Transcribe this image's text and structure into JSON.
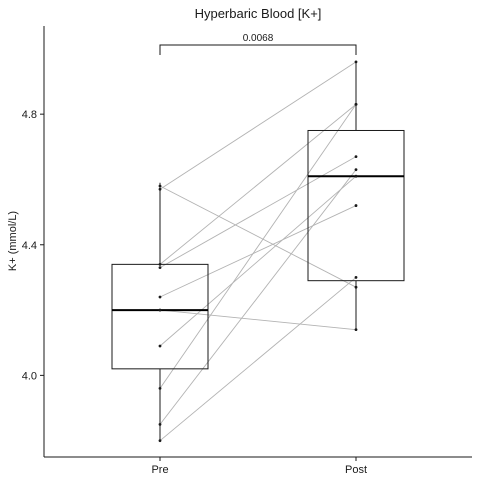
{
  "chart_data": {
    "type": "box",
    "title": "Hyperbaric Blood [K+]",
    "xlabel": "",
    "ylabel": "K+ (mmol/L)",
    "ylim": [
      3.75,
      5.07
    ],
    "y_ticks": [
      "4.0",
      "4.4",
      "4.8"
    ],
    "y_tick_values": [
      4.0,
      4.4,
      4.8
    ],
    "categories": [
      "Pre",
      "Post"
    ],
    "boxes": [
      {
        "category": "Pre",
        "q1": 4.02,
        "median": 4.2,
        "q3": 4.34,
        "whisker_low": 3.8,
        "whisker_high": 4.59
      },
      {
        "category": "Post",
        "q1": 4.29,
        "median": 4.61,
        "q3": 4.75,
        "whisker_low": 4.14,
        "whisker_high": 4.96
      }
    ],
    "paired_lines": [
      {
        "pre": 4.58,
        "post": 4.27
      },
      {
        "pre": 4.57,
        "post": 4.96
      },
      {
        "pre": 4.34,
        "post": 4.83
      },
      {
        "pre": 4.33,
        "post": 4.67
      },
      {
        "pre": 4.24,
        "post": 4.52
      },
      {
        "pre": 4.2,
        "post": 4.14
      },
      {
        "pre": 4.09,
        "post": 4.61
      },
      {
        "pre": 3.96,
        "post": 4.83
      },
      {
        "pre": 3.85,
        "post": 4.63
      },
      {
        "pre": 3.8,
        "post": 4.3
      }
    ],
    "significance": {
      "label": "0.0068",
      "between": [
        "Pre",
        "Post"
      ]
    },
    "grid": false,
    "legend": "none"
  }
}
